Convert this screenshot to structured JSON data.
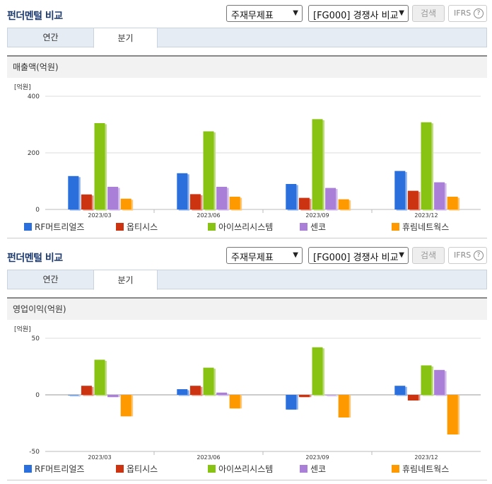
{
  "panels": [
    {
      "title": "펀더멘털 비교",
      "select1": "주재무제표",
      "select2": "[FG000] 경쟁사 비교",
      "search_label": "검색",
      "ifrs_label": "IFRS",
      "ifrs_help": "?",
      "tabs": [
        "연간",
        "분기"
      ],
      "active_tab": "분기",
      "section_title": "매출액(억원)"
    },
    {
      "title": "펀더멘털 비교",
      "select1": "주재무제표",
      "select2": "[FG000] 경쟁사 비교",
      "search_label": "검색",
      "ifrs_label": "IFRS",
      "ifrs_help": "?",
      "tabs": [
        "연간",
        "분기"
      ],
      "active_tab": "분기",
      "section_title": "영업이익(억원)"
    }
  ],
  "colors": {
    "RF머트리얼즈": "#2a6fdb",
    "옵티시스": "#cc3311",
    "아이쓰리시스템": "#88c212",
    "센코": "#a97fd8",
    "휴림네트웍스": "#ff9900"
  },
  "chart_data": [
    {
      "type": "bar",
      "unit_label": "[억원]",
      "categories": [
        "2023/03",
        "2023/06",
        "2023/09",
        "2023/12"
      ],
      "ylim": [
        0,
        400
      ],
      "yticks": [
        0,
        200,
        400
      ],
      "grid": true,
      "legend_position": "bottom",
      "series": [
        {
          "name": "RF머트리얼즈",
          "values": [
            118,
            128,
            90,
            136
          ]
        },
        {
          "name": "옵티시스",
          "values": [
            53,
            54,
            41,
            66
          ]
        },
        {
          "name": "아이쓰리시스템",
          "values": [
            305,
            276,
            319,
            308
          ]
        },
        {
          "name": "센코",
          "values": [
            80,
            80,
            76,
            96
          ]
        },
        {
          "name": "휴림네트웍스",
          "values": [
            38,
            45,
            36,
            45
          ]
        }
      ]
    },
    {
      "type": "bar",
      "unit_label": "[억원]",
      "categories": [
        "2023/03",
        "2023/06",
        "2023/09",
        "2023/12"
      ],
      "ylim": [
        -50,
        50
      ],
      "yticks": [
        -50,
        0,
        50
      ],
      "grid": true,
      "legend_position": "bottom",
      "series": [
        {
          "name": "RF머트리얼즈",
          "values": [
            0,
            5,
            -13,
            8
          ]
        },
        {
          "name": "옵티시스",
          "values": [
            8,
            8,
            -2,
            -5
          ]
        },
        {
          "name": "아이쓰리시스템",
          "values": [
            31,
            24,
            42,
            26
          ]
        },
        {
          "name": "센코",
          "values": [
            -2,
            2,
            0,
            22
          ]
        },
        {
          "name": "휴림네트웍스",
          "values": [
            -19,
            -12,
            -20,
            -35
          ]
        }
      ]
    }
  ]
}
